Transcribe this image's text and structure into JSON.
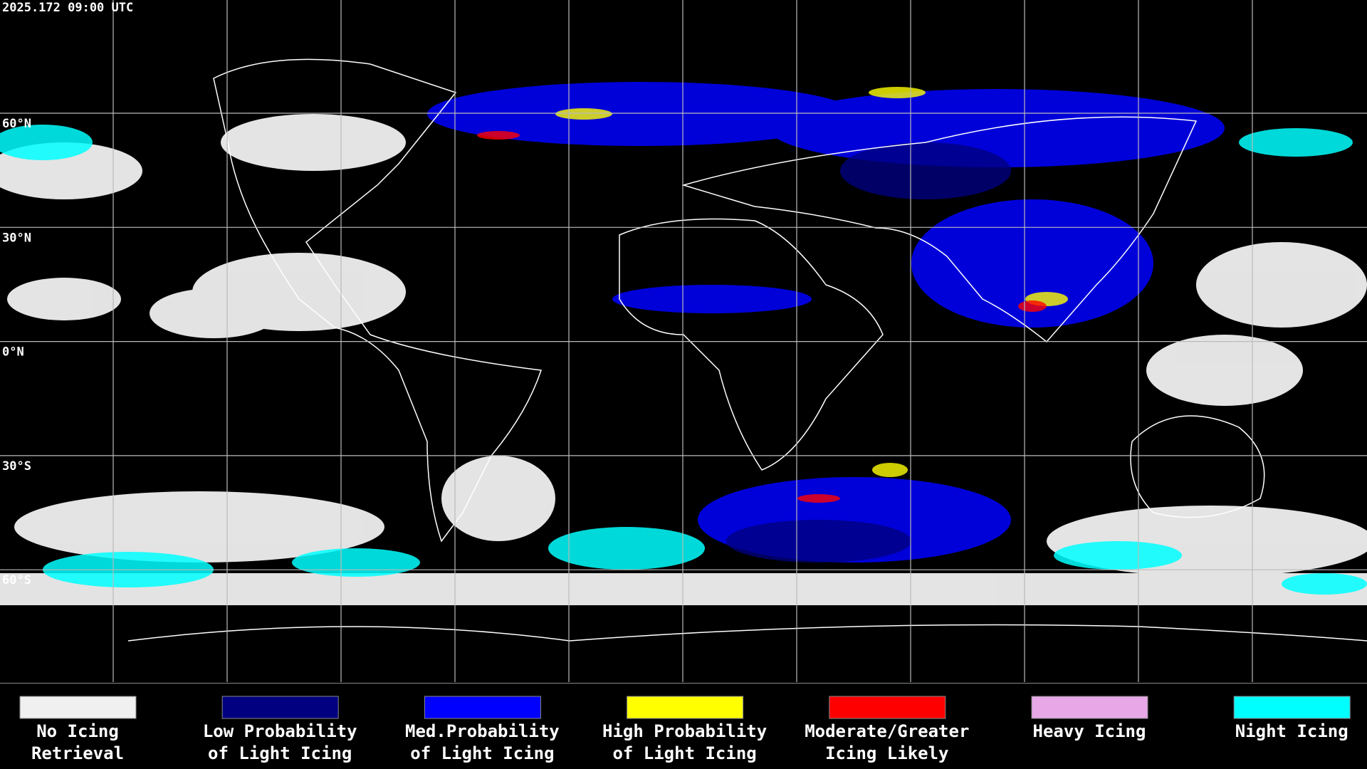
{
  "timestamp": "2025.172 09:00 UTC",
  "latitude_labels": [
    "60°N",
    "30°N",
    "0°N",
    "30°S",
    "60°S"
  ],
  "legend": [
    {
      "lines": [
        "No Icing",
        "Retrieval"
      ],
      "color": "#f0f0f0"
    },
    {
      "lines": [
        "Low Probability",
        "of Light Icing"
      ],
      "color": "#000080"
    },
    {
      "lines": [
        "Med.Probability",
        "of Light Icing"
      ],
      "color": "#0000ff"
    },
    {
      "lines": [
        "High Probability",
        "of Light Icing"
      ],
      "color": "#ffff00"
    },
    {
      "lines": [
        "Moderate/Greater",
        "Icing Likely"
      ],
      "color": "#ff0000"
    },
    {
      "lines": [
        "Heavy Icing"
      ],
      "color": "#e8a8e8"
    },
    {
      "lines": [
        "Night Icing"
      ],
      "color": "#00ffff"
    }
  ]
}
